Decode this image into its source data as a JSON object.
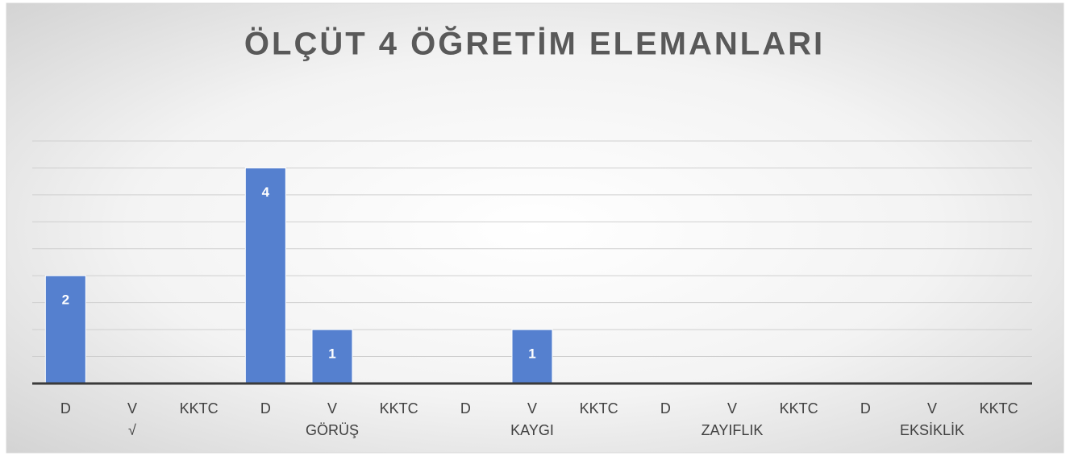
{
  "chart_data": {
    "type": "bar",
    "title": "ÖLÇÜT 4 ÖĞRETİM ELEMANLARI",
    "categories": [
      "D",
      "V",
      "KKTC",
      "D",
      "V",
      "KKTC",
      "D",
      "V",
      "KKTC",
      "D",
      "V",
      "KKTC",
      "D",
      "V",
      "KKTC"
    ],
    "groups": [
      "√",
      "GÖRÜŞ",
      "KAYGI",
      "ZAYIFLIK",
      "EKSİKLİK"
    ],
    "values": [
      2,
      null,
      null,
      4,
      1,
      null,
      null,
      1,
      null,
      null,
      null,
      null,
      null,
      null,
      null
    ],
    "color": "#5580cf",
    "ylim": [
      0,
      4.5
    ],
    "yticks": [
      0,
      0.5,
      1,
      1.5,
      2,
      2.5,
      3,
      3.5,
      4,
      4.5
    ],
    "grid": true
  }
}
